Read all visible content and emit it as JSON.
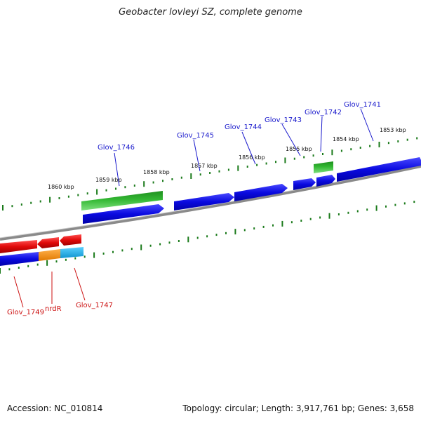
{
  "title": "Geobacter lovleyi SZ, complete genome",
  "footer": {
    "accession": "Accession: NC_010814",
    "summary": "Topology: circular; Length: 3,917,761 bp; Genes: 3,658"
  },
  "colors": {
    "backbone": "#808080",
    "tick": "#1a7a1a",
    "label_top": "#1a1acc",
    "label_bottom": "#cc1111",
    "gene_blue": "#0a0ae0",
    "gene_green": "#33b833",
    "gene_red": "#e00a0a",
    "gene_orange": "#ff8c00",
    "gene_cyan": "#19b5f0"
  },
  "kbp_labels": [
    "1860 kbp",
    "1859 kbp",
    "1858 kbp",
    "1857 kbp",
    "1856 kbp",
    "1855 kbp",
    "1854 kbp",
    "1853 kbp"
  ],
  "gene_labels_top": [
    "Glov_1746",
    "Glov_1745",
    "Glov_1744",
    "Glov_1743",
    "Glov_1742",
    "Glov_1741"
  ],
  "gene_labels_bottom": [
    "Glov_1749",
    "nrdR",
    "Glov_1747"
  ]
}
